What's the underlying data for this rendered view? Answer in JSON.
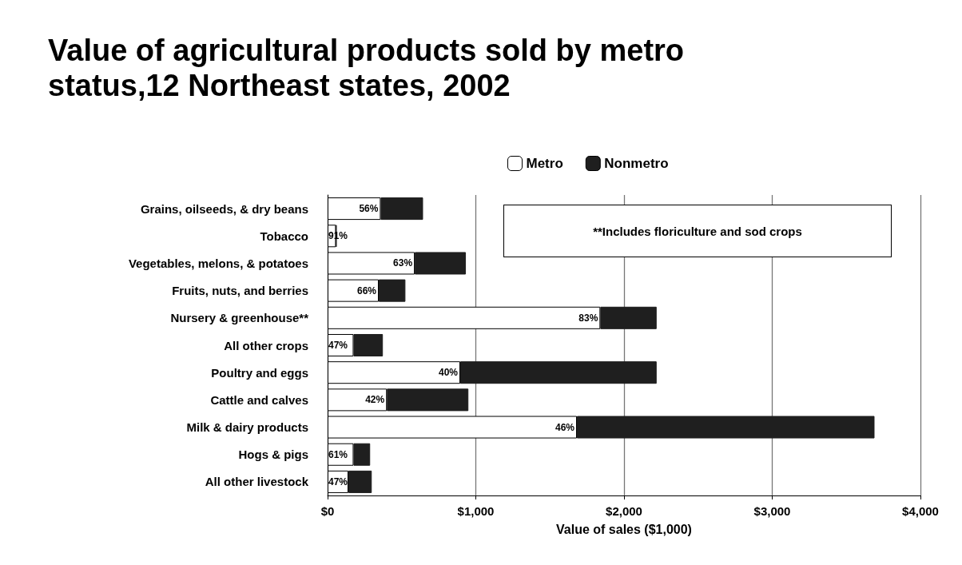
{
  "chart_data": {
    "type": "bar",
    "orientation": "horizontal",
    "stacked": true,
    "title": "Value of agricultural products sold by metro status,12 Northeast states, 2002",
    "xlabel": "Value of sales ($1,000)",
    "categories": [
      "Grains, oilseeds, & dry beans",
      "Tobacco",
      "Vegetables, melons, & potatoes",
      "Fruits, nuts, and berries",
      "Nursery & greenhouse**",
      "All other crops",
      "Poultry and eggs",
      "Cattle and calves",
      "Milk & dairy products",
      "Hogs & pigs",
      "All other livestock"
    ],
    "series": [
      {
        "name": "Metro",
        "color": "#ffffff",
        "values": [
          358,
          56,
          588,
          345,
          1840,
          175,
          895,
          400,
          1682,
          175,
          140
        ]
      },
      {
        "name": "Nonmetro",
        "color": "#1f1f1f",
        "values": [
          286,
          5,
          345,
          180,
          380,
          198,
          1325,
          550,
          2008,
          112,
          158
        ]
      }
    ],
    "xlim": [
      0,
      4000
    ],
    "xticks": [
      {
        "value": 0,
        "label": "$0"
      },
      {
        "value": 1000,
        "label": "$1,000"
      },
      {
        "value": 2000,
        "label": "$2,000"
      },
      {
        "value": 3000,
        "label": "$3,000"
      },
      {
        "value": 4000,
        "label": "$4,000"
      }
    ],
    "grid": "x",
    "legend": "top",
    "annotations": [
      "**Includes floriculture and sod crops",
      {
        "text": "56%",
        "x": 358,
        "y": "Grains, oilseeds, & dry beans"
      },
      {
        "text": "91%",
        "x": 56,
        "y": "Tobacco"
      },
      {
        "text": "63%",
        "x": 588,
        "y": "Vegetables, melons, & potatoes"
      },
      {
        "text": "66%",
        "x": 345,
        "y": "Fruits, nuts, and berries"
      },
      {
        "text": "83%",
        "x": 1840,
        "y": "Nursery & greenhouse**"
      },
      {
        "text": "47%",
        "x": 175,
        "y": "All other crops"
      },
      {
        "text": "40%",
        "x": 895,
        "y": "Poultry and eggs"
      },
      {
        "text": "42%",
        "x": 400,
        "y": "Cattle and calves"
      },
      {
        "text": "46%",
        "x": 1682,
        "y": "Milk & dairy products"
      },
      {
        "text": "61%",
        "x": 175,
        "y": "Hogs & pigs"
      },
      {
        "text": "47%",
        "x": 140,
        "y": "All other livestock"
      }
    ]
  }
}
